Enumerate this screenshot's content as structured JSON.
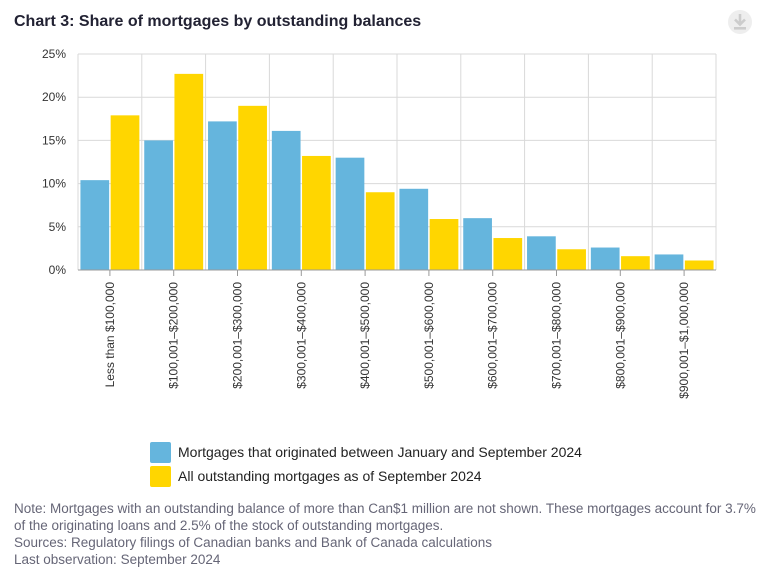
{
  "title": "Chart 3: Share of mortgages by outstanding balances",
  "download": {
    "icon": "download-icon"
  },
  "chart_data": {
    "type": "bar",
    "title": "Chart 3: Share of mortgages by outstanding balances",
    "categories": [
      "Less than $100,000",
      "$100,001–$200,000",
      "$200,001–$300,000",
      "$300,001–$400,000",
      "$400,001–$500,000",
      "$500,001–$600,000",
      "$600,001–$700,000",
      "$700,001–$800,000",
      "$800,001–$900,000",
      "$900,001–$1,000,000"
    ],
    "series": [
      {
        "name": "Mortgages that originated between January and September 2024",
        "color": "#65b5dd",
        "values": [
          10.4,
          15.0,
          17.2,
          16.1,
          13.0,
          9.4,
          6.0,
          3.9,
          2.6,
          1.8
        ]
      },
      {
        "name": "All outstanding mortgages as of September 2024",
        "color": "#ffd600",
        "values": [
          17.9,
          22.7,
          19.0,
          13.2,
          9.0,
          5.9,
          3.7,
          2.4,
          1.6,
          1.1
        ]
      }
    ],
    "ylim": [
      0,
      25
    ],
    "yticks": [
      0,
      5,
      10,
      15,
      20,
      25
    ],
    "ytick_labels": [
      "0%",
      "5%",
      "10%",
      "15%",
      "20%",
      "25%"
    ],
    "xlabel": "",
    "ylabel": "",
    "grid": true,
    "legend_position": "bottom"
  },
  "notes": {
    "note": "Note: Mortgages with an outstanding balance of more than Can$1 million are not shown. These mortgages account for 3.7% of the originating loans and 2.5% of the stock of outstanding mortgages.",
    "sources": "Sources: Regulatory filings of Canadian banks and Bank of Canada calculations",
    "last_observation": "Last observation: September 2024"
  }
}
